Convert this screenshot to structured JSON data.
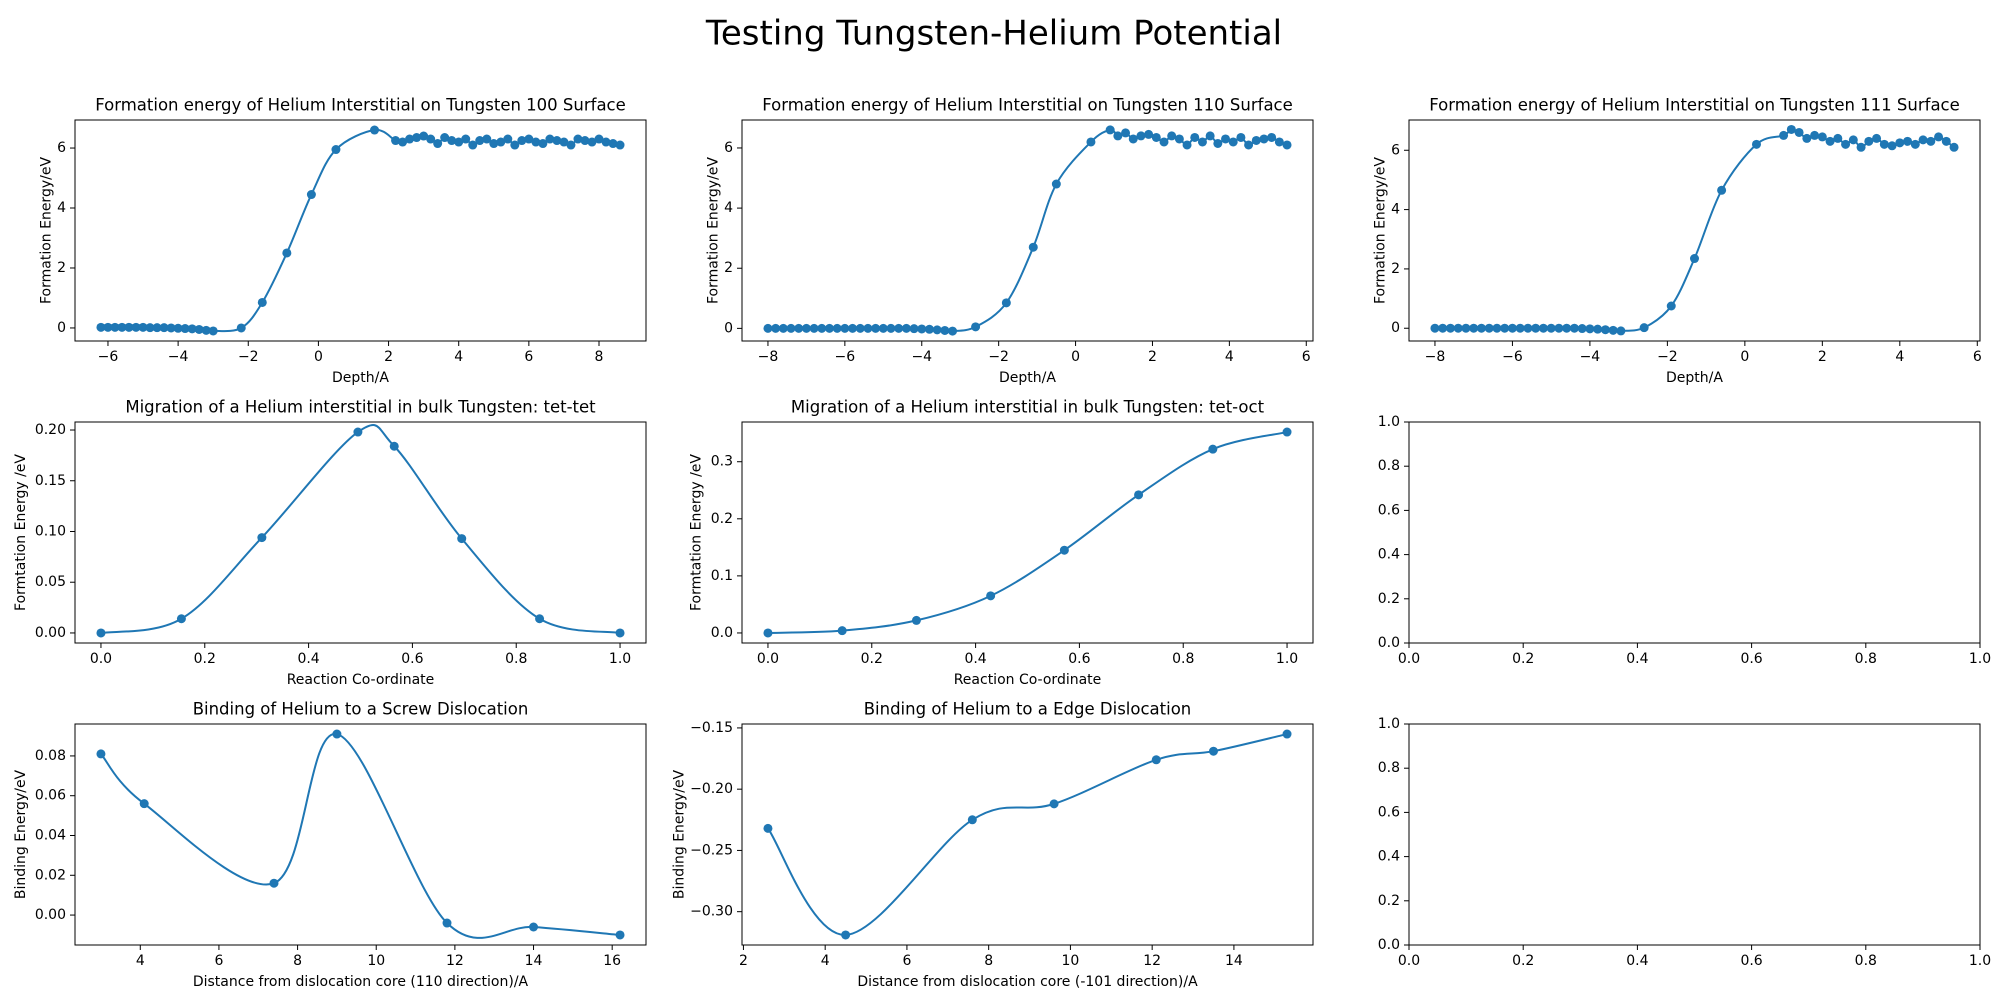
{
  "title": "Testing Tungsten-Helium Potential",
  "chart_data": [
    {
      "type": "line",
      "title": "Formation energy of Helium Interstitial on Tungsten 100 Surface",
      "xlabel": "Depth/A",
      "ylabel": "Formation Energy/eV",
      "color": "#1f77b4",
      "markers": true,
      "smooth": true,
      "x": [
        -6.2,
        -6.0,
        -5.8,
        -5.6,
        -5.4,
        -5.2,
        -5.0,
        -4.8,
        -4.6,
        -4.4,
        -4.2,
        -4.0,
        -3.8,
        -3.6,
        -3.4,
        -3.2,
        -3.0,
        -2.2,
        -1.6,
        -0.9,
        -0.2,
        0.5,
        1.6,
        2.2,
        2.4,
        2.6,
        2.8,
        3.0,
        3.2,
        3.4,
        3.6,
        3.8,
        4.0,
        4.2,
        4.4,
        4.6,
        4.8,
        5.0,
        5.2,
        5.4,
        5.6,
        5.8,
        6.0,
        6.2,
        6.4,
        6.6,
        6.8,
        7.0,
        7.2,
        7.4,
        7.6,
        7.8,
        8.0,
        8.2,
        8.4,
        8.6
      ],
      "values": [
        0.02,
        0.02,
        0.02,
        0.02,
        0.02,
        0.02,
        0.02,
        0.01,
        0.01,
        0.01,
        0.0,
        -0.01,
        -0.02,
        -0.03,
        -0.05,
        -0.08,
        -0.1,
        0.0,
        0.85,
        2.5,
        4.45,
        5.95,
        6.6,
        6.25,
        6.2,
        6.3,
        6.35,
        6.4,
        6.3,
        6.15,
        6.35,
        6.25,
        6.2,
        6.3,
        6.1,
        6.25,
        6.3,
        6.15,
        6.2,
        6.3,
        6.1,
        6.25,
        6.3,
        6.2,
        6.15,
        6.3,
        6.25,
        6.2,
        6.1,
        6.3,
        6.25,
        6.2,
        6.3,
        6.2,
        6.15,
        6.1
      ],
      "xlim": [
        -6.94,
        9.34
      ],
      "ylim": [
        -0.435,
        6.935
      ],
      "xticks": [
        {
          "value": -6,
          "label": "−6"
        },
        {
          "value": -4,
          "label": "−4"
        },
        {
          "value": -2,
          "label": "−2"
        },
        0,
        2,
        4,
        6,
        8
      ],
      "yticks": [
        0,
        2,
        4,
        6
      ]
    },
    {
      "type": "line",
      "title": "Formation energy of Helium Interstitial on Tungsten 110 Surface",
      "xlabel": "Depth/A",
      "ylabel": "Formation Energy/eV",
      "color": "#1f77b4",
      "markers": true,
      "smooth": true,
      "x": [
        -8.0,
        -7.8,
        -7.6,
        -7.4,
        -7.2,
        -7.0,
        -6.8,
        -6.6,
        -6.4,
        -6.2,
        -6.0,
        -5.8,
        -5.6,
        -5.4,
        -5.2,
        -5.0,
        -4.8,
        -4.6,
        -4.4,
        -4.2,
        -4.0,
        -3.8,
        -3.6,
        -3.4,
        -3.2,
        -2.6,
        -1.8,
        -1.1,
        -0.5,
        0.4,
        0.9,
        1.1,
        1.3,
        1.5,
        1.7,
        1.9,
        2.1,
        2.3,
        2.5,
        2.7,
        2.9,
        3.1,
        3.3,
        3.5,
        3.7,
        3.9,
        4.1,
        4.3,
        4.5,
        4.7,
        4.9,
        5.1,
        5.3,
        5.5
      ],
      "values": [
        0.0,
        0.0,
        0.0,
        0.0,
        0.0,
        0.0,
        0.0,
        0.0,
        0.0,
        0.0,
        0.0,
        0.0,
        0.0,
        0.0,
        0.0,
        0.0,
        0.0,
        0.0,
        0.0,
        -0.01,
        -0.02,
        -0.03,
        -0.05,
        -0.07,
        -0.09,
        0.05,
        0.85,
        2.7,
        4.8,
        6.2,
        6.6,
        6.4,
        6.5,
        6.3,
        6.4,
        6.45,
        6.35,
        6.2,
        6.4,
        6.3,
        6.1,
        6.35,
        6.2,
        6.4,
        6.15,
        6.3,
        6.2,
        6.35,
        6.1,
        6.25,
        6.3,
        6.35,
        6.2,
        6.1
      ],
      "xlim": [
        -8.675,
        6.175
      ],
      "ylim": [
        -0.42,
        6.93
      ],
      "xticks": [
        {
          "value": -8,
          "label": "−8"
        },
        {
          "value": -6,
          "label": "−6"
        },
        {
          "value": -4,
          "label": "−4"
        },
        {
          "value": -2,
          "label": "−2"
        },
        0,
        2,
        4,
        6
      ],
      "yticks": [
        0,
        2,
        4,
        6
      ]
    },
    {
      "type": "line",
      "title": "Formation energy of Helium Interstitial on Tungsten 111 Surface",
      "xlabel": "Depth/A",
      "ylabel": "Formation Energy/eV",
      "color": "#1f77b4",
      "markers": true,
      "smooth": true,
      "x": [
        -8.0,
        -7.8,
        -7.6,
        -7.4,
        -7.2,
        -7.0,
        -6.8,
        -6.6,
        -6.4,
        -6.2,
        -6.0,
        -5.8,
        -5.6,
        -5.4,
        -5.2,
        -5.0,
        -4.8,
        -4.6,
        -4.4,
        -4.2,
        -4.0,
        -3.8,
        -3.6,
        -3.4,
        -3.2,
        -2.6,
        -1.9,
        -1.3,
        -0.6,
        0.3,
        1.0,
        1.2,
        1.4,
        1.6,
        1.8,
        2.0,
        2.2,
        2.4,
        2.6,
        2.8,
        3.0,
        3.2,
        3.4,
        3.6,
        3.8,
        4.0,
        4.2,
        4.4,
        4.6,
        4.8,
        5.0,
        5.2,
        5.4
      ],
      "values": [
        0.0,
        0.0,
        0.0,
        0.0,
        0.0,
        0.0,
        0.0,
        0.0,
        0.0,
        0.0,
        0.0,
        0.0,
        0.0,
        0.0,
        0.0,
        0.0,
        0.0,
        0.0,
        0.0,
        -0.01,
        -0.02,
        -0.03,
        -0.05,
        -0.07,
        -0.09,
        0.02,
        0.75,
        2.35,
        4.65,
        6.2,
        6.5,
        6.7,
        6.6,
        6.4,
        6.5,
        6.45,
        6.3,
        6.4,
        6.2,
        6.35,
        6.1,
        6.3,
        6.4,
        6.2,
        6.15,
        6.25,
        6.3,
        6.2,
        6.35,
        6.3,
        6.45,
        6.3,
        6.1
      ],
      "xlim": [
        -8.67,
        6.07
      ],
      "ylim": [
        -0.43,
        7.02
      ],
      "xticks": [
        {
          "value": -8,
          "label": "−8"
        },
        {
          "value": -6,
          "label": "−6"
        },
        {
          "value": -4,
          "label": "−4"
        },
        {
          "value": -2,
          "label": "−2"
        },
        0,
        2,
        4,
        6
      ],
      "yticks": [
        0,
        2,
        4,
        6
      ]
    },
    {
      "type": "line",
      "title": "Migration of a Helium interstitial in bulk Tungsten: tet-tet",
      "xlabel": "Reaction Co-ordinate",
      "ylabel": "Formtation Energy /eV",
      "color": "#1f77b4",
      "markers": true,
      "smooth": true,
      "x": [
        0.0,
        0.155,
        0.31,
        0.495,
        0.565,
        0.695,
        0.845,
        1.0
      ],
      "values": [
        0.0,
        0.014,
        0.094,
        0.198,
        0.184,
        0.093,
        0.014,
        0.0
      ],
      "xlim": [
        -0.05,
        1.05
      ],
      "ylim": [
        -0.0099,
        0.2079
      ],
      "xticks": [
        {
          "value": 0,
          "label": "0.0"
        },
        0.2,
        0.4,
        0.6,
        0.8,
        {
          "value": 1,
          "label": "1.0"
        }
      ],
      "yticks": [
        {
          "value": 0,
          "label": "0.00"
        },
        0.05,
        {
          "value": 0.1,
          "label": "0.10"
        },
        0.15,
        {
          "value": 0.2,
          "label": "0.20"
        }
      ]
    },
    {
      "type": "line",
      "title": "Migration of a Helium interstitial in bulk Tungsten: tet-oct",
      "xlabel": "Reaction Co-ordinate",
      "ylabel": "Formtation Energy /eV",
      "color": "#1f77b4",
      "markers": true,
      "smooth": true,
      "x": [
        0.0,
        0.143,
        0.286,
        0.429,
        0.571,
        0.714,
        0.857,
        1.0
      ],
      "values": [
        0.0,
        0.004,
        0.022,
        0.065,
        0.145,
        0.242,
        0.322,
        0.352
      ],
      "xlim": [
        -0.05,
        1.05
      ],
      "ylim": [
        -0.0176,
        0.3696
      ],
      "xticks": [
        {
          "value": 0,
          "label": "0.0"
        },
        0.2,
        0.4,
        0.6,
        0.8,
        {
          "value": 1,
          "label": "1.0"
        }
      ],
      "yticks": [
        {
          "value": 0,
          "label": "0.0"
        },
        0.1,
        0.2,
        0.3
      ]
    },
    {
      "type": "empty",
      "xlim": [
        0,
        1
      ],
      "ylim": [
        0,
        1
      ],
      "xticks": [
        {
          "value": 0,
          "label": "0.0"
        },
        0.2,
        0.4,
        0.6,
        0.8,
        {
          "value": 1,
          "label": "1.0"
        }
      ],
      "yticks": [
        {
          "value": 0,
          "label": "0.0"
        },
        0.2,
        0.4,
        0.6,
        0.8,
        {
          "value": 1,
          "label": "1.0"
        }
      ]
    },
    {
      "type": "line",
      "title": "Binding of Helium to a Screw Dislocation",
      "xlabel": "Distance from dislocation core (110 direction)/A",
      "ylabel": "Binding Energy/eV",
      "color": "#1f77b4",
      "markers": true,
      "smooth": true,
      "x": [
        3.0,
        4.1,
        7.4,
        9.0,
        11.8,
        14.0,
        16.2
      ],
      "values": [
        0.081,
        0.056,
        0.016,
        0.091,
        -0.004,
        -0.006,
        -0.01
      ],
      "xlim": [
        2.34,
        16.86
      ],
      "ylim": [
        -0.01505,
        0.09605
      ],
      "xticks": [
        4,
        6,
        8,
        10,
        12,
        14,
        16
      ],
      "yticks": [
        {
          "value": 0,
          "label": "0.00"
        },
        0.02,
        0.04,
        0.06,
        0.08
      ]
    },
    {
      "type": "line",
      "title": "Binding of Helium to a Edge Dislocation",
      "xlabel": "Distance from dislocation core (-101 direction)/A",
      "ylabel": "Binding Energy/eV",
      "color": "#1f77b4",
      "markers": true,
      "smooth": true,
      "x": [
        2.6,
        4.5,
        7.6,
        9.6,
        12.1,
        13.5,
        15.3
      ],
      "values": [
        -0.232,
        -0.319,
        -0.225,
        -0.212,
        -0.176,
        -0.169,
        -0.155
      ],
      "xlim": [
        1.965,
        15.935
      ],
      "ylim": [
        -0.3272,
        -0.1468
      ],
      "xticks": [
        2,
        4,
        6,
        8,
        10,
        12,
        14
      ],
      "yticks": [
        {
          "value": -0.3,
          "label": "−0.30"
        },
        {
          "value": -0.25,
          "label": "−0.25"
        },
        {
          "value": -0.2,
          "label": "−0.20"
        },
        {
          "value": -0.15,
          "label": "−0.15"
        }
      ]
    },
    {
      "type": "empty",
      "xlim": [
        0,
        1
      ],
      "ylim": [
        0,
        1
      ],
      "xticks": [
        {
          "value": 0,
          "label": "0.0"
        },
        0.2,
        0.4,
        0.6,
        0.8,
        {
          "value": 1,
          "label": "1.0"
        }
      ],
      "yticks": [
        {
          "value": 0,
          "label": "0.0"
        },
        0.2,
        0.4,
        0.6,
        0.8,
        {
          "value": 1,
          "label": "1.0"
        }
      ]
    }
  ]
}
